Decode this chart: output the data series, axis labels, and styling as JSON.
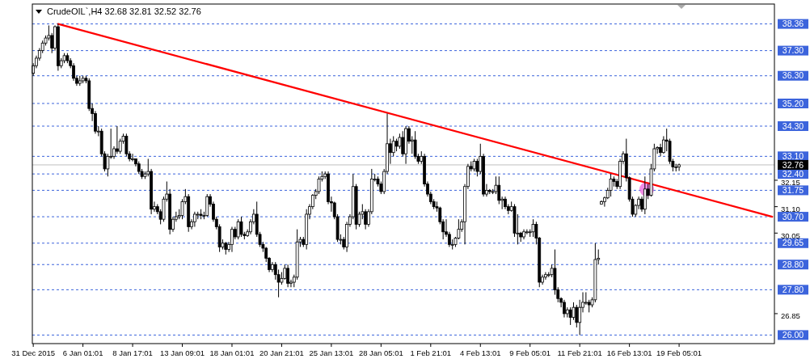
{
  "chart_data": {
    "type": "candlestick",
    "title": "CrudeOIL`,H4  32.68 32.81 32.52 32.76",
    "categories": [
      "31 Dec 2015",
      null,
      null,
      null,
      null,
      null,
      null,
      null,
      null,
      null,
      null,
      null,
      null,
      null,
      null,
      null,
      "6 Jan 01:01",
      null,
      null,
      null,
      null,
      null,
      null,
      null,
      null,
      null,
      null,
      null,
      null,
      null,
      null,
      null,
      "8 Jan 17:01",
      null,
      null,
      null,
      null,
      null,
      null,
      null,
      null,
      null,
      null,
      null,
      null,
      null,
      null,
      null,
      "13 Jan 09:01",
      null,
      null,
      null,
      null,
      null,
      null,
      null,
      null,
      null,
      null,
      null,
      null,
      null,
      null,
      null,
      "18 Jan 01:01",
      null,
      null,
      null,
      null,
      null,
      null,
      null,
      null,
      null,
      null,
      null,
      null,
      null,
      null,
      null,
      "20 Jan 21:01",
      null,
      null,
      null,
      null,
      null,
      null,
      null,
      null,
      null,
      null,
      null,
      null,
      null,
      null,
      null,
      "25 Jan 13:01",
      null,
      null,
      null,
      null,
      null,
      null,
      null,
      null,
      null,
      null,
      null,
      null,
      null,
      null,
      null,
      "28 Jan 05:01",
      null,
      null,
      null,
      null,
      null,
      null,
      null,
      null,
      null,
      null,
      null,
      null,
      null,
      null,
      null,
      "1 Feb 21:01",
      null,
      null,
      null,
      null,
      null,
      null,
      null,
      null,
      null,
      null,
      null,
      null,
      null,
      null,
      null,
      "4 Feb 13:01",
      null,
      null,
      null,
      null,
      null,
      null,
      null,
      null,
      null,
      null,
      null,
      null,
      null,
      null,
      null,
      "9 Feb 05:01",
      null,
      null,
      null,
      null,
      null,
      null,
      null,
      null,
      null,
      null,
      null,
      null,
      null,
      null,
      null,
      "11 Feb 21:01",
      null,
      null,
      null,
      null,
      null,
      null,
      null,
      null,
      null,
      null,
      null,
      null,
      null,
      null,
      null,
      "16 Feb 13:01",
      null,
      null,
      null,
      null,
      null,
      null,
      null,
      null,
      null,
      null,
      null,
      null,
      null,
      null,
      null,
      "19 Feb 05:01",
      null,
      null,
      null,
      null,
      null,
      null,
      null,
      null,
      null,
      null,
      null,
      null,
      null,
      null,
      null,
      null,
      null,
      null,
      null,
      null,
      null,
      null,
      null,
      null,
      null,
      null,
      null,
      null,
      null,
      null
    ],
    "ohlc": [
      [
        36.4,
        36.8,
        36.3,
        36.7
      ],
      [
        36.7,
        37.1,
        36.6,
        37.0
      ],
      [
        37.0,
        37.4,
        36.9,
        37.3
      ],
      [
        37.3,
        37.7,
        37.2,
        37.6
      ],
      [
        37.6,
        37.9,
        37.5,
        37.8
      ],
      [
        37.8,
        38.3,
        37.7,
        37.9
      ],
      [
        37.9,
        38.0,
        37.2,
        37.4
      ],
      [
        37.4,
        38.3,
        37.3,
        38.25
      ],
      [
        38.25,
        38.36,
        36.5,
        36.7
      ],
      [
        36.7,
        37.0,
        36.6,
        36.9
      ],
      [
        36.9,
        37.2,
        36.8,
        37.1
      ],
      [
        37.1,
        37.2,
        36.8,
        36.9
      ],
      [
        36.9,
        37.0,
        36.6,
        36.7
      ],
      [
        36.7,
        36.8,
        36.1,
        36.2
      ],
      [
        36.2,
        36.3,
        35.9,
        36.0
      ],
      [
        36.0,
        36.3,
        35.9,
        36.1
      ],
      [
        36.1,
        36.3,
        36.0,
        36.2
      ],
      [
        36.2,
        36.3,
        36.0,
        36.1
      ],
      [
        36.1,
        36.2,
        34.9,
        35.0
      ],
      [
        35.0,
        35.2,
        34.5,
        34.8
      ],
      [
        34.8,
        34.9,
        34.0,
        34.1
      ],
      [
        34.1,
        34.3,
        33.9,
        34.1
      ],
      [
        34.1,
        34.2,
        33.1,
        33.2
      ],
      [
        33.2,
        33.3,
        32.5,
        32.6
      ],
      [
        32.6,
        33.2,
        32.3,
        33.1
      ],
      [
        33.1,
        34.2,
        33.0,
        33.1
      ],
      [
        33.1,
        33.5,
        33.0,
        33.4
      ],
      [
        33.4,
        34.3,
        33.2,
        33.3
      ],
      [
        33.3,
        33.8,
        33.2,
        33.7
      ],
      [
        33.7,
        34.0,
        33.6,
        33.9
      ],
      [
        33.9,
        34.0,
        33.1,
        33.2
      ],
      [
        33.2,
        33.3,
        32.9,
        33.0
      ],
      [
        33.0,
        33.2,
        32.9,
        33.0
      ],
      [
        33.0,
        33.0,
        32.7,
        32.8
      ],
      [
        32.8,
        32.9,
        32.4,
        32.5
      ],
      [
        32.5,
        32.6,
        32.2,
        32.3
      ],
      [
        32.3,
        32.5,
        32.2,
        32.4
      ],
      [
        32.4,
        33.0,
        32.3,
        32.5
      ],
      [
        32.5,
        32.6,
        30.8,
        31.0
      ],
      [
        31.0,
        31.3,
        30.9,
        31.1
      ],
      [
        31.1,
        31.2,
        30.8,
        30.9
      ],
      [
        30.9,
        31.0,
        30.4,
        30.6
      ],
      [
        30.6,
        31.5,
        30.5,
        31.4
      ],
      [
        31.4,
        32.1,
        31.3,
        31.6
      ],
      [
        31.6,
        31.8,
        30.0,
        30.2
      ],
      [
        30.2,
        30.7,
        30.1,
        30.6
      ],
      [
        30.6,
        30.9,
        30.5,
        30.7
      ],
      [
        30.7,
        31.0,
        30.6,
        30.75
      ],
      [
        30.75,
        31.4,
        30.6,
        31.3
      ],
      [
        31.3,
        31.8,
        31.2,
        31.5
      ],
      [
        31.5,
        31.6,
        30.1,
        30.3
      ],
      [
        30.3,
        30.6,
        30.2,
        30.5
      ],
      [
        30.5,
        30.9,
        30.3,
        30.8
      ],
      [
        30.8,
        30.9,
        30.6,
        30.8
      ],
      [
        30.8,
        31.0,
        30.6,
        30.75
      ],
      [
        30.75,
        30.9,
        30.6,
        30.75
      ],
      [
        30.75,
        31.6,
        30.7,
        31.5
      ],
      [
        31.5,
        31.6,
        31.1,
        31.2
      ],
      [
        31.2,
        31.3,
        30.5,
        30.6
      ],
      [
        30.6,
        30.7,
        30.2,
        30.3
      ],
      [
        30.3,
        30.4,
        29.3,
        29.5
      ],
      [
        29.5,
        29.8,
        29.4,
        29.65
      ],
      [
        29.65,
        29.7,
        29.2,
        29.4
      ],
      [
        29.4,
        29.7,
        29.3,
        29.6
      ],
      [
        29.6,
        30.3,
        29.3,
        30.2
      ],
      [
        30.2,
        30.3,
        29.8,
        29.9
      ],
      [
        29.9,
        30.6,
        29.8,
        30.5
      ],
      [
        30.5,
        30.7,
        29.9,
        30.0
      ],
      [
        30.0,
        30.1,
        29.8,
        29.95
      ],
      [
        29.95,
        30.2,
        29.9,
        30.1
      ],
      [
        30.1,
        30.6,
        30.0,
        30.5
      ],
      [
        30.5,
        31.0,
        30.4,
        30.8
      ],
      [
        30.8,
        31.3,
        29.9,
        30.0
      ],
      [
        30.0,
        30.1,
        29.5,
        29.6
      ],
      [
        29.6,
        29.7,
        29.3,
        29.45
      ],
      [
        29.45,
        29.5,
        28.9,
        29.05
      ],
      [
        29.05,
        29.1,
        28.5,
        28.6
      ],
      [
        28.6,
        28.9,
        28.5,
        28.8
      ],
      [
        28.8,
        28.9,
        28.2,
        28.4
      ],
      [
        28.4,
        28.6,
        27.5,
        28.1
      ],
      [
        28.1,
        28.5,
        28.0,
        28.25
      ],
      [
        28.25,
        28.8,
        28.2,
        28.65
      ],
      [
        28.65,
        28.8,
        27.9,
        28.05
      ],
      [
        28.05,
        28.2,
        27.9,
        28.1
      ],
      [
        28.1,
        28.4,
        27.9,
        28.3
      ],
      [
        28.3,
        30.2,
        28.2,
        29.7
      ],
      [
        29.7,
        29.9,
        29.5,
        29.8
      ],
      [
        29.8,
        29.9,
        29.5,
        29.6
      ],
      [
        29.6,
        31.0,
        29.4,
        30.8
      ],
      [
        30.8,
        31.2,
        30.6,
        31.1
      ],
      [
        31.1,
        31.6,
        31.0,
        31.55
      ],
      [
        31.55,
        31.8,
        31.4,
        31.7
      ],
      [
        31.7,
        32.3,
        31.6,
        32.2
      ],
      [
        32.2,
        32.5,
        32.1,
        32.3
      ],
      [
        32.3,
        32.5,
        32.2,
        32.4
      ],
      [
        32.4,
        32.5,
        31.2,
        31.3
      ],
      [
        31.3,
        31.5,
        30.9,
        31.25
      ],
      [
        31.25,
        31.3,
        30.6,
        30.7
      ],
      [
        30.7,
        30.8,
        29.7,
        29.8
      ],
      [
        29.8,
        30.0,
        29.6,
        29.8
      ],
      [
        29.8,
        29.9,
        29.4,
        29.5
      ],
      [
        29.5,
        30.5,
        29.3,
        30.4
      ],
      [
        30.4,
        30.8,
        30.3,
        30.7
      ],
      [
        30.7,
        32.4,
        30.6,
        31.9
      ],
      [
        31.9,
        32.0,
        30.2,
        30.4
      ],
      [
        30.4,
        30.9,
        30.3,
        30.8
      ],
      [
        30.8,
        31.2,
        30.6,
        30.9
      ],
      [
        30.9,
        31.0,
        30.2,
        30.4
      ],
      [
        30.4,
        31.0,
        30.3,
        30.9
      ],
      [
        30.9,
        32.6,
        30.8,
        32.2
      ],
      [
        32.2,
        32.4,
        32.1,
        32.2
      ],
      [
        32.2,
        32.3,
        31.9,
        32.0
      ],
      [
        32.0,
        32.1,
        31.6,
        31.7
      ],
      [
        31.7,
        32.6,
        31.6,
        32.5
      ],
      [
        32.5,
        34.8,
        32.4,
        33.6
      ],
      [
        33.6,
        33.8,
        32.8,
        33.25
      ],
      [
        33.25,
        33.9,
        33.1,
        33.7
      ],
      [
        33.7,
        33.8,
        33.3,
        33.5
      ],
      [
        33.5,
        34.0,
        33.4,
        33.85
      ],
      [
        33.85,
        34.1,
        33.1,
        33.2
      ],
      [
        33.2,
        34.3,
        32.8,
        34.2
      ],
      [
        34.2,
        34.3,
        33.6,
        33.7
      ],
      [
        33.7,
        33.9,
        33.2,
        33.75
      ],
      [
        33.75,
        34.1,
        33.0,
        33.1
      ],
      [
        33.1,
        33.2,
        32.8,
        32.9
      ],
      [
        32.9,
        33.3,
        32.8,
        33.1
      ],
      [
        33.1,
        33.2,
        31.9,
        32.0
      ],
      [
        32.0,
        32.1,
        31.5,
        31.6
      ],
      [
        31.6,
        31.7,
        31.2,
        31.3
      ],
      [
        31.3,
        31.4,
        31.0,
        31.1
      ],
      [
        31.1,
        31.3,
        30.9,
        31.05
      ],
      [
        31.05,
        31.1,
        30.4,
        30.5
      ],
      [
        30.5,
        30.6,
        29.8,
        30.1
      ],
      [
        30.1,
        30.6,
        29.9,
        30.0
      ],
      [
        30.0,
        30.1,
        29.5,
        29.6
      ],
      [
        29.6,
        29.8,
        29.4,
        29.6
      ],
      [
        29.6,
        29.9,
        29.5,
        29.85
      ],
      [
        29.85,
        30.6,
        29.8,
        30.2
      ],
      [
        30.2,
        30.6,
        30.1,
        30.5
      ],
      [
        30.5,
        32.0,
        29.6,
        31.9
      ],
      [
        31.9,
        32.8,
        31.8,
        32.7
      ],
      [
        32.7,
        32.9,
        32.5,
        32.6
      ],
      [
        32.6,
        33.0,
        32.5,
        32.9
      ],
      [
        32.9,
        33.0,
        32.3,
        32.5
      ],
      [
        32.5,
        33.6,
        32.4,
        33.1
      ],
      [
        33.1,
        33.2,
        31.5,
        31.6
      ],
      [
        31.6,
        32.0,
        31.5,
        31.75
      ],
      [
        31.75,
        31.8,
        31.6,
        31.7
      ],
      [
        31.7,
        31.8,
        31.6,
        31.7
      ],
      [
        31.7,
        32.3,
        31.6,
        31.95
      ],
      [
        31.95,
        32.3,
        31.2,
        31.35
      ],
      [
        31.35,
        31.5,
        31.0,
        31.4
      ],
      [
        31.4,
        31.5,
        31.0,
        31.1
      ],
      [
        31.1,
        31.2,
        30.8,
        30.95
      ],
      [
        30.95,
        31.3,
        30.9,
        31.1
      ],
      [
        31.1,
        31.2,
        29.9,
        30.05
      ],
      [
        30.05,
        30.8,
        29.6,
        30.05
      ],
      [
        30.05,
        30.1,
        29.7,
        29.9
      ],
      [
        29.9,
        30.2,
        29.8,
        30.1
      ],
      [
        30.1,
        30.2,
        30.0,
        30.1
      ],
      [
        30.1,
        30.2,
        29.9,
        30.1
      ],
      [
        30.1,
        30.6,
        29.9,
        30.4
      ],
      [
        30.4,
        30.5,
        29.6,
        29.85
      ],
      [
        29.85,
        29.9,
        27.9,
        28.1
      ],
      [
        28.1,
        28.4,
        28.0,
        28.3
      ],
      [
        28.3,
        28.5,
        28.2,
        28.4
      ],
      [
        28.4,
        28.5,
        28.3,
        28.4
      ],
      [
        28.4,
        28.8,
        28.3,
        28.65
      ],
      [
        28.65,
        29.4,
        27.6,
        27.8
      ],
      [
        27.8,
        27.9,
        27.3,
        27.45
      ],
      [
        27.45,
        27.5,
        27.1,
        27.3
      ],
      [
        27.3,
        27.4,
        26.7,
        26.85
      ],
      [
        26.85,
        27.1,
        26.7,
        27.0
      ],
      [
        27.0,
        27.1,
        26.4,
        26.7
      ],
      [
        26.7,
        27.3,
        26.6,
        27.1
      ],
      [
        27.1,
        27.2,
        26.3,
        26.5
      ],
      [
        26.5,
        27.4,
        26.0,
        27.1
      ],
      [
        27.1,
        27.7,
        26.9,
        27.3
      ],
      [
        27.3,
        27.7,
        27.2,
        27.3
      ],
      [
        27.3,
        27.4,
        26.9,
        27.2
      ],
      [
        27.2,
        27.5,
        27.1,
        27.4
      ],
      [
        27.4,
        29.65,
        27.3,
        29.0
      ],
      [
        29.0,
        29.4,
        28.8,
        29.05
      ],
      [
        31.2,
        31.35,
        31.2,
        31.3
      ],
      [
        31.3,
        31.5,
        31.1,
        31.45
      ],
      [
        31.45,
        31.85,
        31.4,
        31.75
      ],
      [
        31.75,
        32.4,
        31.5,
        32.2
      ],
      [
        32.2,
        32.3,
        31.9,
        32.1
      ],
      [
        32.1,
        32.2,
        31.8,
        31.9
      ],
      [
        31.9,
        33.0,
        31.8,
        32.9
      ],
      [
        32.9,
        33.3,
        32.8,
        33.2
      ],
      [
        33.2,
        33.8,
        32.1,
        32.25
      ],
      [
        32.25,
        32.3,
        31.3,
        31.4
      ],
      [
        31.4,
        31.5,
        30.7,
        30.8
      ],
      [
        30.8,
        31.2,
        30.7,
        31.15
      ],
      [
        31.15,
        31.5,
        31.0,
        31.4
      ],
      [
        31.4,
        31.5,
        30.9,
        31.0
      ],
      [
        31.0,
        32.3,
        30.8,
        31.8
      ],
      [
        31.8,
        32.0,
        31.4,
        31.55
      ],
      [
        31.55,
        32.8,
        31.5,
        32.6
      ],
      [
        32.6,
        33.6,
        32.5,
        33.4
      ],
      [
        33.4,
        33.5,
        33.2,
        33.45
      ],
      [
        33.45,
        33.6,
        33.1,
        33.25
      ],
      [
        33.25,
        33.9,
        33.2,
        33.75
      ],
      [
        33.75,
        34.2,
        33.3,
        33.7
      ],
      [
        33.7,
        33.8,
        32.8,
        32.9
      ],
      [
        32.9,
        33.0,
        32.5,
        32.68
      ],
      [
        32.68,
        32.8,
        32.5,
        32.68
      ],
      [
        32.68,
        32.81,
        32.52,
        32.76
      ],
      null,
      null,
      null,
      null,
      null,
      null,
      null,
      null,
      null,
      null,
      null,
      null,
      null,
      null,
      null,
      null,
      null,
      null,
      null,
      null,
      null,
      null,
      null,
      null,
      null,
      null,
      null,
      null,
      null,
      null
    ],
    "series": [
      {
        "type": "line",
        "color": "#ff0000",
        "values": [
          null,
          null,
          null,
          null,
          null,
          null,
          null,
          null,
          38.36,
          null,
          null,
          null,
          null,
          null,
          null,
          null,
          null,
          null,
          null,
          null,
          null,
          null,
          null,
          null,
          null,
          null,
          null,
          null,
          null,
          null,
          null,
          null,
          null,
          null,
          null,
          null,
          null,
          null,
          null,
          null,
          null,
          null,
          null,
          null,
          null,
          null,
          null,
          null,
          null,
          null,
          null,
          null,
          null,
          null,
          null,
          null,
          null,
          null,
          null,
          null,
          null,
          null,
          null,
          null,
          null,
          null,
          null,
          null,
          null,
          null,
          null,
          null,
          null,
          null,
          null,
          null,
          null,
          null,
          null,
          null,
          null,
          null,
          null,
          null,
          null,
          null,
          null,
          null,
          null,
          null,
          null,
          null,
          null,
          null,
          null,
          null,
          null,
          null,
          null,
          null,
          null,
          null,
          null,
          null,
          null,
          null,
          null,
          null,
          null,
          null,
          null,
          null,
          null,
          null,
          null,
          null,
          null,
          null,
          null,
          null,
          null,
          null,
          null,
          null,
          null,
          null,
          null,
          null,
          null,
          null,
          null,
          null,
          null,
          null,
          null,
          null,
          null,
          null,
          null,
          null,
          null,
          null,
          null,
          null,
          null,
          null,
          null,
          null,
          null,
          null,
          null,
          null,
          null,
          null,
          null,
          null,
          null,
          null,
          null,
          null,
          null,
          null,
          null,
          null,
          null,
          null,
          null,
          null,
          null,
          null,
          null,
          null,
          null,
          null,
          null,
          null,
          null,
          null,
          null,
          null,
          null,
          null,
          null,
          null,
          null,
          null,
          null,
          null,
          null,
          null,
          null,
          null,
          null,
          null,
          null,
          null,
          null,
          null,
          null,
          null,
          null,
          null,
          null,
          null,
          null,
          null,
          null,
          null,
          null,
          null,
          null,
          null,
          null,
          null,
          null,
          null,
          null,
          null,
          null,
          null,
          null,
          null,
          null,
          null,
          null,
          null,
          null,
          null,
          null,
          null,
          null,
          null,
          null,
          null,
          null,
          null,
          null,
          null,
          30.7
        ]
      }
    ],
    "ylim": [
      25.66,
      39.15
    ],
    "yticks": [
      26.85,
      30.05,
      {
        "value": 31.1,
        "label": "31.10"
      },
      32.15
    ],
    "ref_lines": [
      {
        "axis": "y",
        "value": 38.36,
        "label": "38.36",
        "color": "#3c64dc",
        "line_style": "dashed"
      },
      {
        "axis": "y",
        "value": 37.3,
        "label": "37.30",
        "color": "#3c64dc",
        "line_style": "dashed"
      },
      {
        "axis": "y",
        "value": 36.3,
        "label": "36.30",
        "color": "#3c64dc",
        "line_style": "dashed"
      },
      {
        "axis": "y",
        "value": 35.2,
        "label": "35.20",
        "color": "#3c64dc",
        "line_style": "dashed"
      },
      {
        "axis": "y",
        "value": 34.3,
        "label": "34.30",
        "color": "#3c64dc",
        "line_style": "dashed"
      },
      {
        "axis": "y",
        "value": 33.1,
        "label": "33.10",
        "color": "#3c64dc",
        "line_style": "dashed"
      },
      {
        "axis": "y",
        "value": 32.4,
        "label": "32.40",
        "color": "#3c64dc",
        "line_style": "dashed"
      },
      {
        "axis": "y",
        "value": 31.75,
        "label": "31.75",
        "color": "#3c64dc",
        "line_style": "dashed"
      },
      {
        "axis": "y",
        "value": 30.7,
        "label": "30.70",
        "color": "#3c64dc",
        "line_style": "dashed"
      },
      {
        "axis": "y",
        "value": 29.65,
        "label": "29.65",
        "color": "#3c64dc",
        "line_style": "dashed"
      },
      {
        "axis": "y",
        "value": 28.8,
        "label": "28.80",
        "color": "#3c64dc",
        "line_style": "dashed"
      },
      {
        "axis": "y",
        "value": 27.8,
        "label": "27.80",
        "color": "#3c64dc",
        "line_style": "dashed"
      },
      {
        "axis": "y",
        "value": 26.0,
        "label": "26.00",
        "color": "#3c64dc",
        "line_style": "dashed"
      },
      {
        "axis": "y",
        "value": 32.76,
        "label": "32.76",
        "color": "#c0c0c0",
        "line_style": "solid"
      }
    ]
  }
}
